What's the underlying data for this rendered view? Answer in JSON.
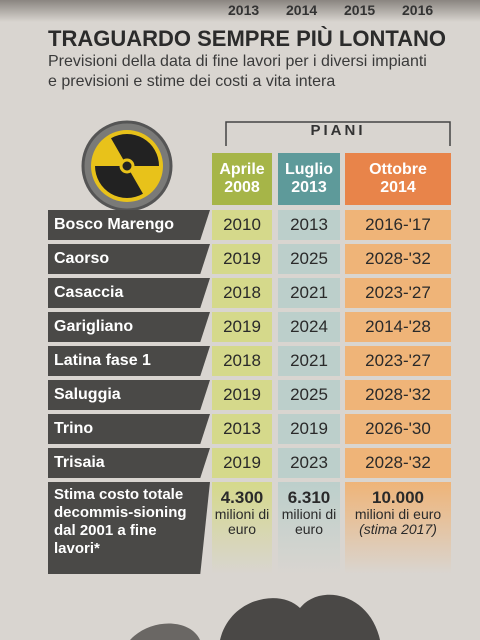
{
  "top_years": [
    "2013",
    "2014",
    "2015",
    "2016"
  ],
  "title": "TRAGUARDO SEMPRE PIÙ LONTANO",
  "subtitle": "Previsioni della data di fine lavori per i diversi impianti e previsioni e stime dei costi a vita intera",
  "group_header": "PIANI",
  "columns": [
    {
      "month": "Aprile",
      "year": "2008"
    },
    {
      "month": "Luglio",
      "year": "2013"
    },
    {
      "month": "Ottobre",
      "year": "2014"
    }
  ],
  "rows": [
    [
      "Bosco Marengo",
      "2010",
      "2013",
      "2016-'17"
    ],
    [
      "Caorso",
      "2019",
      "2025",
      "2028-'32"
    ],
    [
      "Casaccia",
      "2018",
      "2021",
      "2023-'27"
    ],
    [
      "Garigliano",
      "2019",
      "2024",
      "2014-'28"
    ],
    [
      "Latina fase 1",
      "2018",
      "2021",
      "2023-'27"
    ],
    [
      "Saluggia",
      "2019",
      "2025",
      "2028-'32"
    ],
    [
      "Trino",
      "2013",
      "2019",
      "2026-'30"
    ],
    [
      "Trisaia",
      "2019",
      "2023",
      "2028-'32"
    ]
  ],
  "cost_row": {
    "label": "Stima costo totale decommis-sioning dal 2001 a fine lavori*",
    "cells": [
      {
        "amount": "4.300",
        "unit": "milioni di euro"
      },
      {
        "amount": "6.310",
        "unit": "milioni di euro"
      },
      {
        "amount": "10.000",
        "unit": "milioni di euro",
        "note": "(stima 2017)"
      }
    ]
  }
}
